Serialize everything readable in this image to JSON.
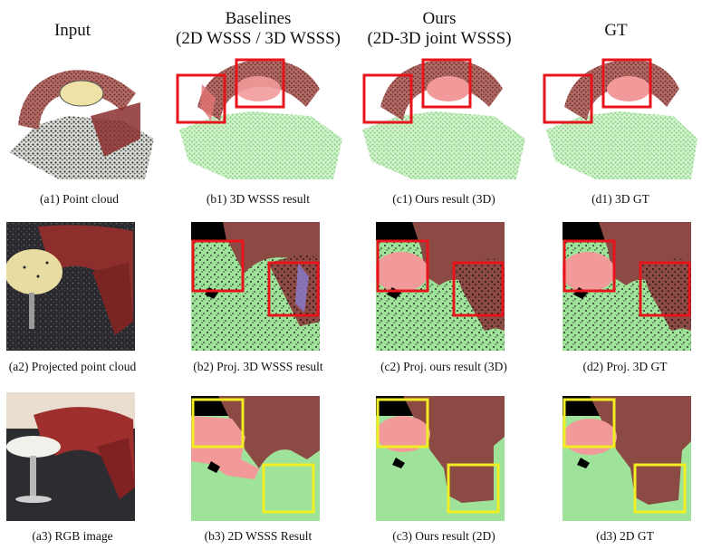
{
  "headers": {
    "input": "Input",
    "baselines_line1": "Baselines",
    "baselines_line2": "(2D WSSS / 3D WSSS)",
    "ours_line1": "Ours",
    "ours_line2": "(2D-3D joint WSSS)",
    "gt": "GT"
  },
  "captions": {
    "a1": "(a1) Point cloud",
    "b1": "(b1) 3D WSSS result",
    "c1": "(c1) Ours result (3D)",
    "d1": "(d1) 3D GT",
    "a2": "(a2) Projected point cloud",
    "b2": "(b2) Proj. 3D WSSS result",
    "c2": "(c2) Proj. ours result (3D)",
    "d2": "(d2) Proj. 3D GT",
    "a3": "(a3) RGB image",
    "b3": "(b3) 2D WSSS Result",
    "c3": "(c3) Ours result (2D)",
    "d3": "(d3) 2D GT"
  },
  "colors": {
    "floor": "#9fe39a",
    "sofa": "#8b4a43",
    "table": "#f29a9a",
    "background": "#000000",
    "red_box": "#e8141c",
    "yellow_box": "#f2ee22"
  }
}
